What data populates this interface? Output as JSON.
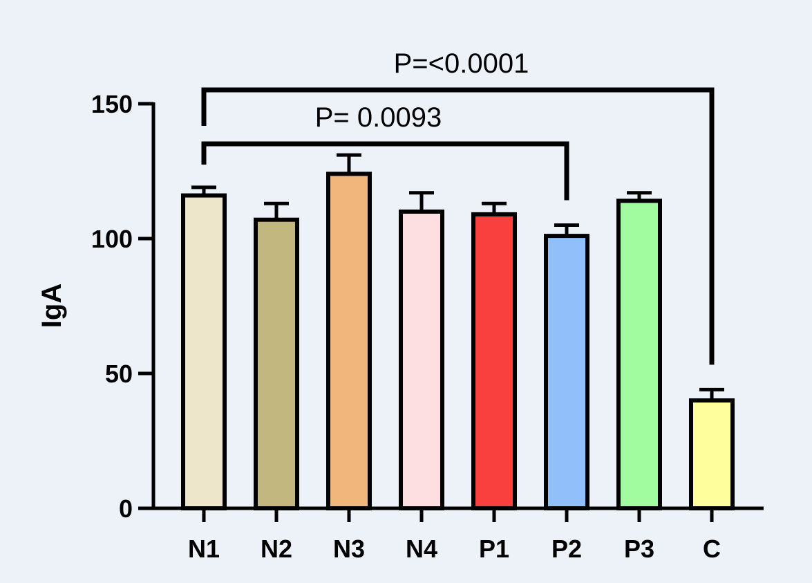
{
  "chart_data": {
    "type": "bar",
    "ylabel": "IgA",
    "ylim": [
      0,
      150
    ],
    "yticks": [
      0,
      50,
      100,
      150
    ],
    "categories": [
      "N1",
      "N2",
      "N3",
      "N4",
      "P1",
      "P2",
      "P3",
      "C"
    ],
    "values": [
      116,
      107,
      124,
      110,
      109,
      101,
      114,
      40
    ],
    "errors": [
      3,
      6,
      7,
      7,
      4,
      4,
      3,
      4
    ],
    "colors": [
      "#ede6cb",
      "#c2b77e",
      "#f1b67c",
      "#fddfe2",
      "#fa3f3f",
      "#91bff9",
      "#a1fca0",
      "#fefe9d"
    ],
    "comparisons": [
      {
        "from": "N1",
        "to": "C",
        "label": "P=<0.0001"
      },
      {
        "from": "N1",
        "to": "P2",
        "label": "P= 0.0093"
      }
    ],
    "grid": false
  }
}
